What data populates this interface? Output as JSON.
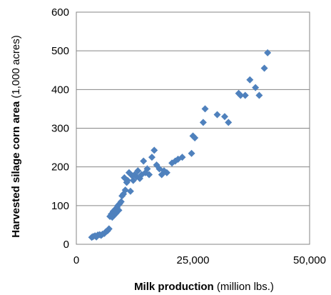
{
  "chart_data": {
    "type": "scatter",
    "title": "",
    "xlabel_bold": "Milk production",
    "xlabel_rest": " (million lbs.)",
    "ylabel_bold": "Harvested silage corn area",
    "ylabel_rest": " (1,000 acres)",
    "xlim": [
      0,
      50000
    ],
    "ylim": [
      0,
      600
    ],
    "xticks": [
      0,
      25000,
      50000
    ],
    "xtick_labels": [
      "0",
      "25,000",
      "50,000"
    ],
    "yticks": [
      0,
      100,
      200,
      300,
      400,
      500,
      600
    ],
    "ytick_labels": [
      "0",
      "100",
      "200",
      "300",
      "400",
      "500",
      "600"
    ],
    "grid": "horizontal",
    "legend": "none",
    "marker_color": "#4F81BD",
    "marker": "diamond",
    "series": [
      {
        "points": [
          [
            3300,
            18
          ],
          [
            3600,
            20
          ],
          [
            4000,
            22
          ],
          [
            4300,
            19
          ],
          [
            4600,
            24
          ],
          [
            5000,
            25
          ],
          [
            5300,
            23
          ],
          [
            5600,
            26
          ],
          [
            6000,
            28
          ],
          [
            6300,
            32
          ],
          [
            6700,
            35
          ],
          [
            7000,
            40
          ],
          [
            7200,
            72
          ],
          [
            7500,
            78
          ],
          [
            7700,
            70
          ],
          [
            7900,
            85
          ],
          [
            8100,
            75
          ],
          [
            8300,
            90
          ],
          [
            8500,
            80
          ],
          [
            8700,
            95
          ],
          [
            8900,
            100
          ],
          [
            9100,
            88
          ],
          [
            9300,
            105
          ],
          [
            9600,
            110
          ],
          [
            9800,
            125
          ],
          [
            10100,
            130
          ],
          [
            10300,
            172
          ],
          [
            10500,
            140
          ],
          [
            10800,
            160
          ],
          [
            11000,
            165
          ],
          [
            11300,
            185
          ],
          [
            11600,
            137
          ],
          [
            11900,
            178
          ],
          [
            12200,
            165
          ],
          [
            12500,
            180
          ],
          [
            12900,
            175
          ],
          [
            13200,
            190
          ],
          [
            13600,
            170
          ],
          [
            14000,
            180
          ],
          [
            14400,
            215
          ],
          [
            14800,
            185
          ],
          [
            15200,
            195
          ],
          [
            15600,
            180
          ],
          [
            16200,
            225
          ],
          [
            16700,
            243
          ],
          [
            17200,
            205
          ],
          [
            17800,
            195
          ],
          [
            18300,
            180
          ],
          [
            18800,
            190
          ],
          [
            19400,
            185
          ],
          [
            20500,
            210
          ],
          [
            21200,
            215
          ],
          [
            21800,
            220
          ],
          [
            22700,
            225
          ],
          [
            24700,
            235
          ],
          [
            25000,
            280
          ],
          [
            25400,
            275
          ],
          [
            27200,
            315
          ],
          [
            27600,
            350
          ],
          [
            30200,
            335
          ],
          [
            31800,
            330
          ],
          [
            32600,
            315
          ],
          [
            34800,
            390
          ],
          [
            35200,
            385
          ],
          [
            36200,
            385
          ],
          [
            37200,
            425
          ],
          [
            38400,
            405
          ],
          [
            39200,
            385
          ],
          [
            40300,
            455
          ],
          [
            41000,
            495
          ]
        ]
      }
    ]
  }
}
